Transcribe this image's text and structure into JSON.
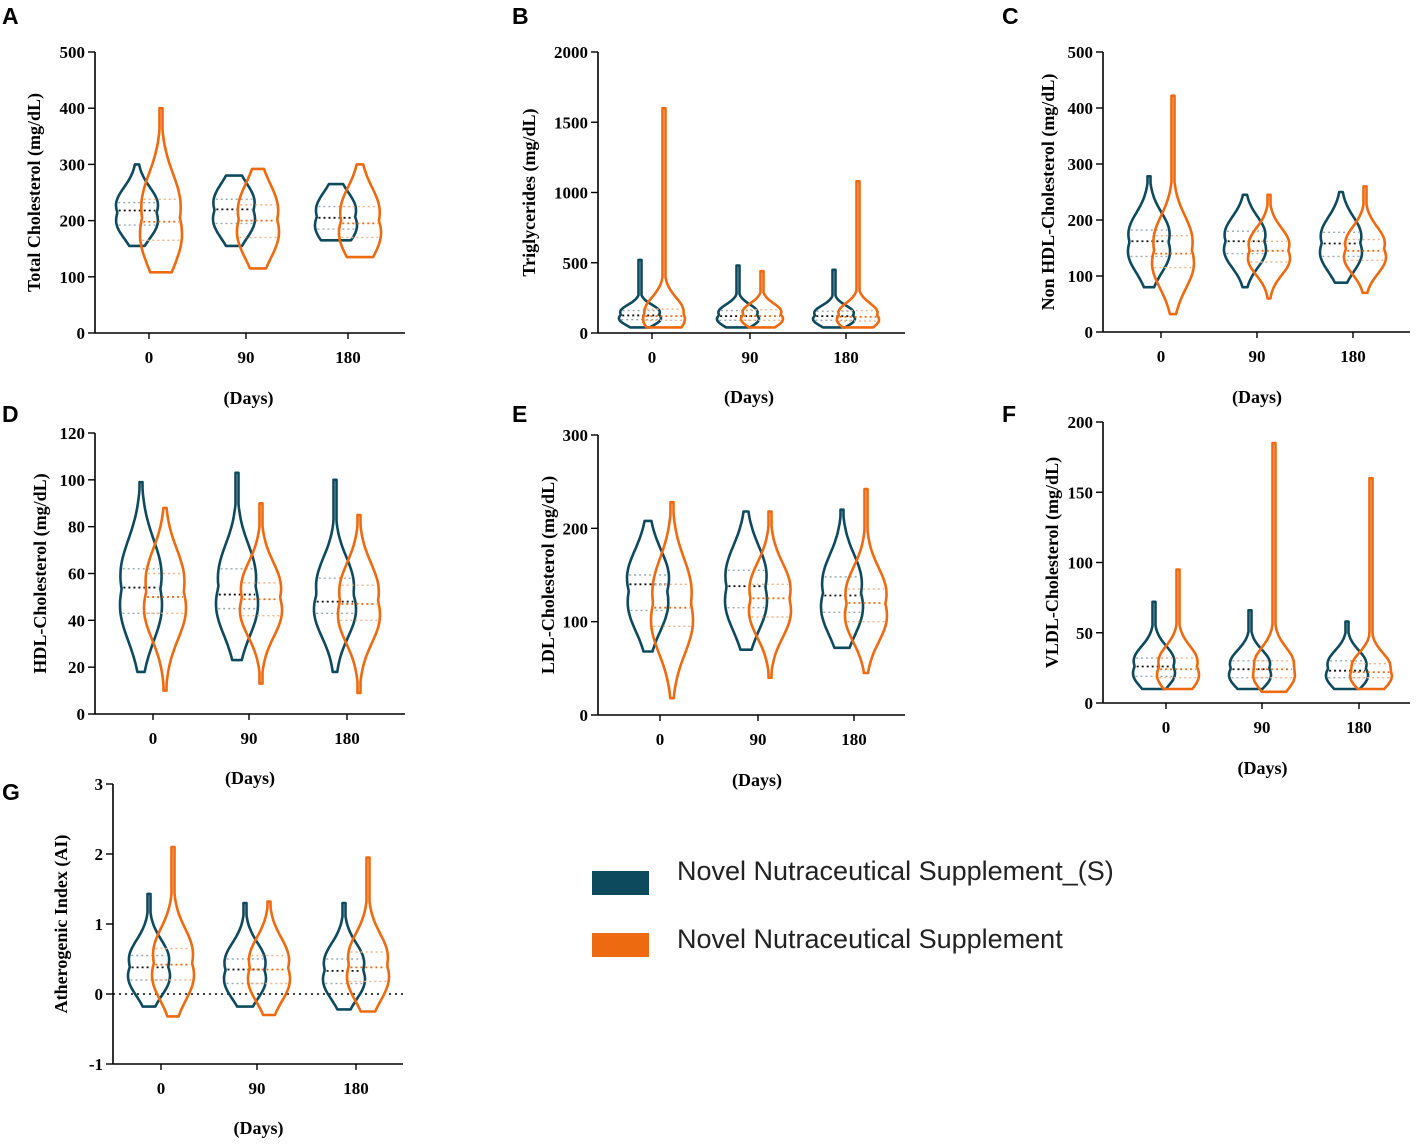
{
  "colors": {
    "s_series": "#0e4a5e",
    "nns_series": "#ee6a10",
    "axis": "#000000"
  },
  "legend": [
    {
      "name": "Novel Nutraceutical Supplement_(S)",
      "color": "#0e4a5e"
    },
    {
      "name": "Novel Nutraceutical Supplement",
      "color": "#ee6a10"
    }
  ],
  "chart_data": [
    {
      "letter": "A",
      "type": "violin",
      "title": "",
      "ylabel": "Total Cholesterol (mg/dL)",
      "xlabel": "(Days)",
      "categories": [
        "0",
        "90",
        "180"
      ],
      "ylim": [
        0,
        500
      ],
      "yticks": [
        "0",
        "100",
        "200",
        "300",
        "400",
        "500"
      ],
      "series": [
        {
          "name": "Novel Nutraceutical Supplement_(S)",
          "min": [
            155,
            155,
            165
          ],
          "max": [
            300,
            280,
            265
          ],
          "median": [
            218,
            220,
            205
          ],
          "q1": [
            192,
            195,
            185
          ],
          "q3": [
            232,
            238,
            225
          ]
        },
        {
          "name": "Novel Nutraceutical Supplement",
          "min": [
            108,
            115,
            135
          ],
          "max": [
            400,
            292,
            300
          ],
          "median": [
            198,
            200,
            195
          ],
          "q1": [
            165,
            170,
            170
          ],
          "q3": [
            238,
            228,
            225
          ]
        }
      ]
    },
    {
      "letter": "B",
      "type": "violin",
      "title": "",
      "ylabel": "Triglycerides (mg/dL)",
      "xlabel": "(Days)",
      "categories": [
        "0",
        "90",
        "180"
      ],
      "ylim": [
        0,
        2000
      ],
      "yticks": [
        "0",
        "500",
        "1000",
        "1500",
        "2000"
      ],
      "series": [
        {
          "name": "Novel Nutraceutical Supplement_(S)",
          "min": [
            40,
            40,
            40
          ],
          "max": [
            520,
            480,
            450
          ],
          "median": [
            125,
            120,
            120
          ],
          "q1": [
            95,
            90,
            90
          ],
          "q3": [
            160,
            160,
            155
          ]
        },
        {
          "name": "Novel Nutraceutical Supplement",
          "min": [
            40,
            40,
            40
          ],
          "max": [
            1600,
            440,
            1080
          ],
          "median": [
            120,
            120,
            115
          ],
          "q1": [
            90,
            90,
            85
          ],
          "q3": [
            170,
            165,
            160
          ]
        }
      ]
    },
    {
      "letter": "C",
      "type": "violin",
      "title": "",
      "ylabel": "Non HDL-Cholesterol (mg/dL)",
      "xlabel": "(Days)",
      "categories": [
        "0",
        "90",
        "180"
      ],
      "ylim": [
        0,
        500
      ],
      "yticks": [
        "0",
        "100",
        "200",
        "300",
        "400",
        "500"
      ],
      "series": [
        {
          "name": "Novel Nutraceutical Supplement_(S)",
          "min": [
            80,
            80,
            88
          ],
          "max": [
            278,
            245,
            250
          ],
          "median": [
            162,
            162,
            158
          ],
          "q1": [
            135,
            140,
            135
          ],
          "q3": [
            182,
            180,
            178
          ]
        },
        {
          "name": "Novel Nutraceutical Supplement",
          "min": [
            32,
            60,
            70
          ],
          "max": [
            422,
            245,
            260
          ],
          "median": [
            140,
            145,
            145
          ],
          "q1": [
            115,
            125,
            128
          ],
          "q3": [
            172,
            162,
            165
          ]
        }
      ]
    },
    {
      "letter": "D",
      "type": "violin",
      "title": "",
      "ylabel": "HDL-Cholesterol (mg/dL)",
      "xlabel": "(Days)",
      "categories": [
        "0",
        "90",
        "180"
      ],
      "ylim": [
        0,
        120
      ],
      "yticks": [
        "0",
        "20",
        "40",
        "60",
        "80",
        "100",
        "120"
      ],
      "series": [
        {
          "name": "Novel Nutraceutical Supplement_(S)",
          "min": [
            18,
            23,
            18
          ],
          "max": [
            99,
            103,
            100
          ],
          "median": [
            54,
            51,
            48
          ],
          "q1": [
            43,
            45,
            43
          ],
          "q3": [
            62,
            62,
            58
          ]
        },
        {
          "name": "Novel Nutraceutical Supplement",
          "min": [
            10,
            13,
            9
          ],
          "max": [
            88,
            90,
            85
          ],
          "median": [
            50,
            49,
            47
          ],
          "q1": [
            43,
            42,
            40
          ],
          "q3": [
            60,
            56,
            55
          ]
        }
      ]
    },
    {
      "letter": "E",
      "type": "violin",
      "title": "",
      "ylabel": "LDL-Cholesterol (mg/dL)",
      "xlabel": "(Days)",
      "categories": [
        "0",
        "90",
        "180"
      ],
      "ylim": [
        0,
        300
      ],
      "yticks": [
        "0",
        "100",
        "200",
        "300"
      ],
      "series": [
        {
          "name": "Novel Nutraceutical Supplement_(S)",
          "min": [
            68,
            70,
            72
          ],
          "max": [
            208,
            218,
            220
          ],
          "median": [
            140,
            138,
            128
          ],
          "q1": [
            112,
            115,
            110
          ],
          "q3": [
            150,
            155,
            148
          ]
        },
        {
          "name": "Novel Nutraceutical Supplement",
          "min": [
            18,
            40,
            45
          ],
          "max": [
            228,
            218,
            242
          ],
          "median": [
            115,
            125,
            120
          ],
          "q1": [
            95,
            105,
            100
          ],
          "q3": [
            140,
            140,
            135
          ]
        }
      ]
    },
    {
      "letter": "F",
      "type": "violin",
      "title": "",
      "ylabel": "VLDL-Cholesterol (mg/dL)",
      "xlabel": "(Days)",
      "categories": [
        "0",
        "90",
        "180"
      ],
      "ylim": [
        0,
        200
      ],
      "yticks": [
        "0",
        "50",
        "100",
        "150",
        "200"
      ],
      "series": [
        {
          "name": "Novel Nutraceutical Supplement_(S)",
          "min": [
            10,
            10,
            10
          ],
          "max": [
            72,
            66,
            58
          ],
          "median": [
            26,
            24,
            23
          ],
          "q1": [
            19,
            18,
            18
          ],
          "q3": [
            32,
            30,
            30
          ]
        },
        {
          "name": "Novel Nutraceutical Supplement",
          "min": [
            10,
            8,
            10
          ],
          "max": [
            95,
            185,
            160
          ],
          "median": [
            24,
            24,
            22
          ],
          "q1": [
            18,
            18,
            18
          ],
          "q3": [
            32,
            30,
            28
          ]
        }
      ]
    },
    {
      "letter": "G",
      "type": "violin",
      "title": "",
      "ylabel": "Atherogenic Index (AI)",
      "xlabel": "(Days)",
      "categories": [
        "0",
        "90",
        "180"
      ],
      "ylim": [
        -1,
        3
      ],
      "yticks": [
        "-1",
        "0",
        "1",
        "2",
        "3"
      ],
      "zero_line": true,
      "series": [
        {
          "name": "Novel Nutraceutical Supplement_(S)",
          "min": [
            -0.18,
            -0.18,
            -0.22
          ],
          "max": [
            1.43,
            1.3,
            1.3
          ],
          "median": [
            0.38,
            0.35,
            0.33
          ],
          "q1": [
            0.2,
            0.15,
            0.15
          ],
          "q3": [
            0.55,
            0.5,
            0.5
          ]
        },
        {
          "name": "Novel Nutraceutical Supplement",
          "min": [
            -0.32,
            -0.3,
            -0.25
          ],
          "max": [
            2.1,
            1.32,
            1.95
          ],
          "median": [
            0.42,
            0.35,
            0.38
          ],
          "q1": [
            0.2,
            0.15,
            0.18
          ],
          "q3": [
            0.65,
            0.55,
            0.6
          ]
        }
      ]
    }
  ]
}
